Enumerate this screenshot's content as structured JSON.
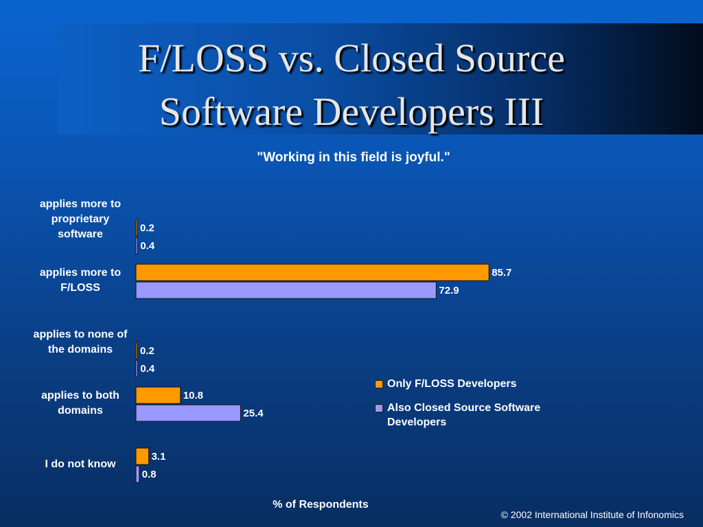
{
  "slide": {
    "title_line1": "F/LOSS vs. Closed Source",
    "title_line2": "Software Developers III",
    "copyright": "© 2002 International Institute of Infonomics"
  },
  "chart_data": {
    "type": "bar",
    "orientation": "horizontal",
    "title": "\"Working in this field is joyful.\"",
    "xlabel": "% of Respondents",
    "ylabel": "",
    "xlim": [
      0,
      100
    ],
    "grid": false,
    "legend_position": "right",
    "categories": [
      "applies more to proprietary software",
      "applies more to F/LOSS",
      "applies to none of the domains",
      "applies to both domains",
      "I do not know"
    ],
    "category_lines": [
      [
        "applies more to",
        "proprietary",
        "software"
      ],
      [
        "applies more to",
        "F/LOSS"
      ],
      [
        "applies to none of",
        "the domains"
      ],
      [
        "applies to both",
        "domains"
      ],
      [
        "I do not know"
      ]
    ],
    "series": [
      {
        "name": "Only F/LOSS Developers",
        "color": "#ff9900",
        "values": [
          0.2,
          85.7,
          0.2,
          10.8,
          3.1
        ],
        "labels": [
          "0.2",
          "85.7",
          "0.2",
          "10.8",
          "3.1"
        ]
      },
      {
        "name": "Also Closed Source Software Developers",
        "legend_lines": [
          "Also Closed Source Software",
          "Developers"
        ],
        "color": "#9999ff",
        "values": [
          0.4,
          72.9,
          0.4,
          25.4,
          0.8
        ],
        "labels": [
          "0.4",
          "72.9",
          "0.4",
          "25.4",
          "0.8"
        ]
      }
    ]
  }
}
